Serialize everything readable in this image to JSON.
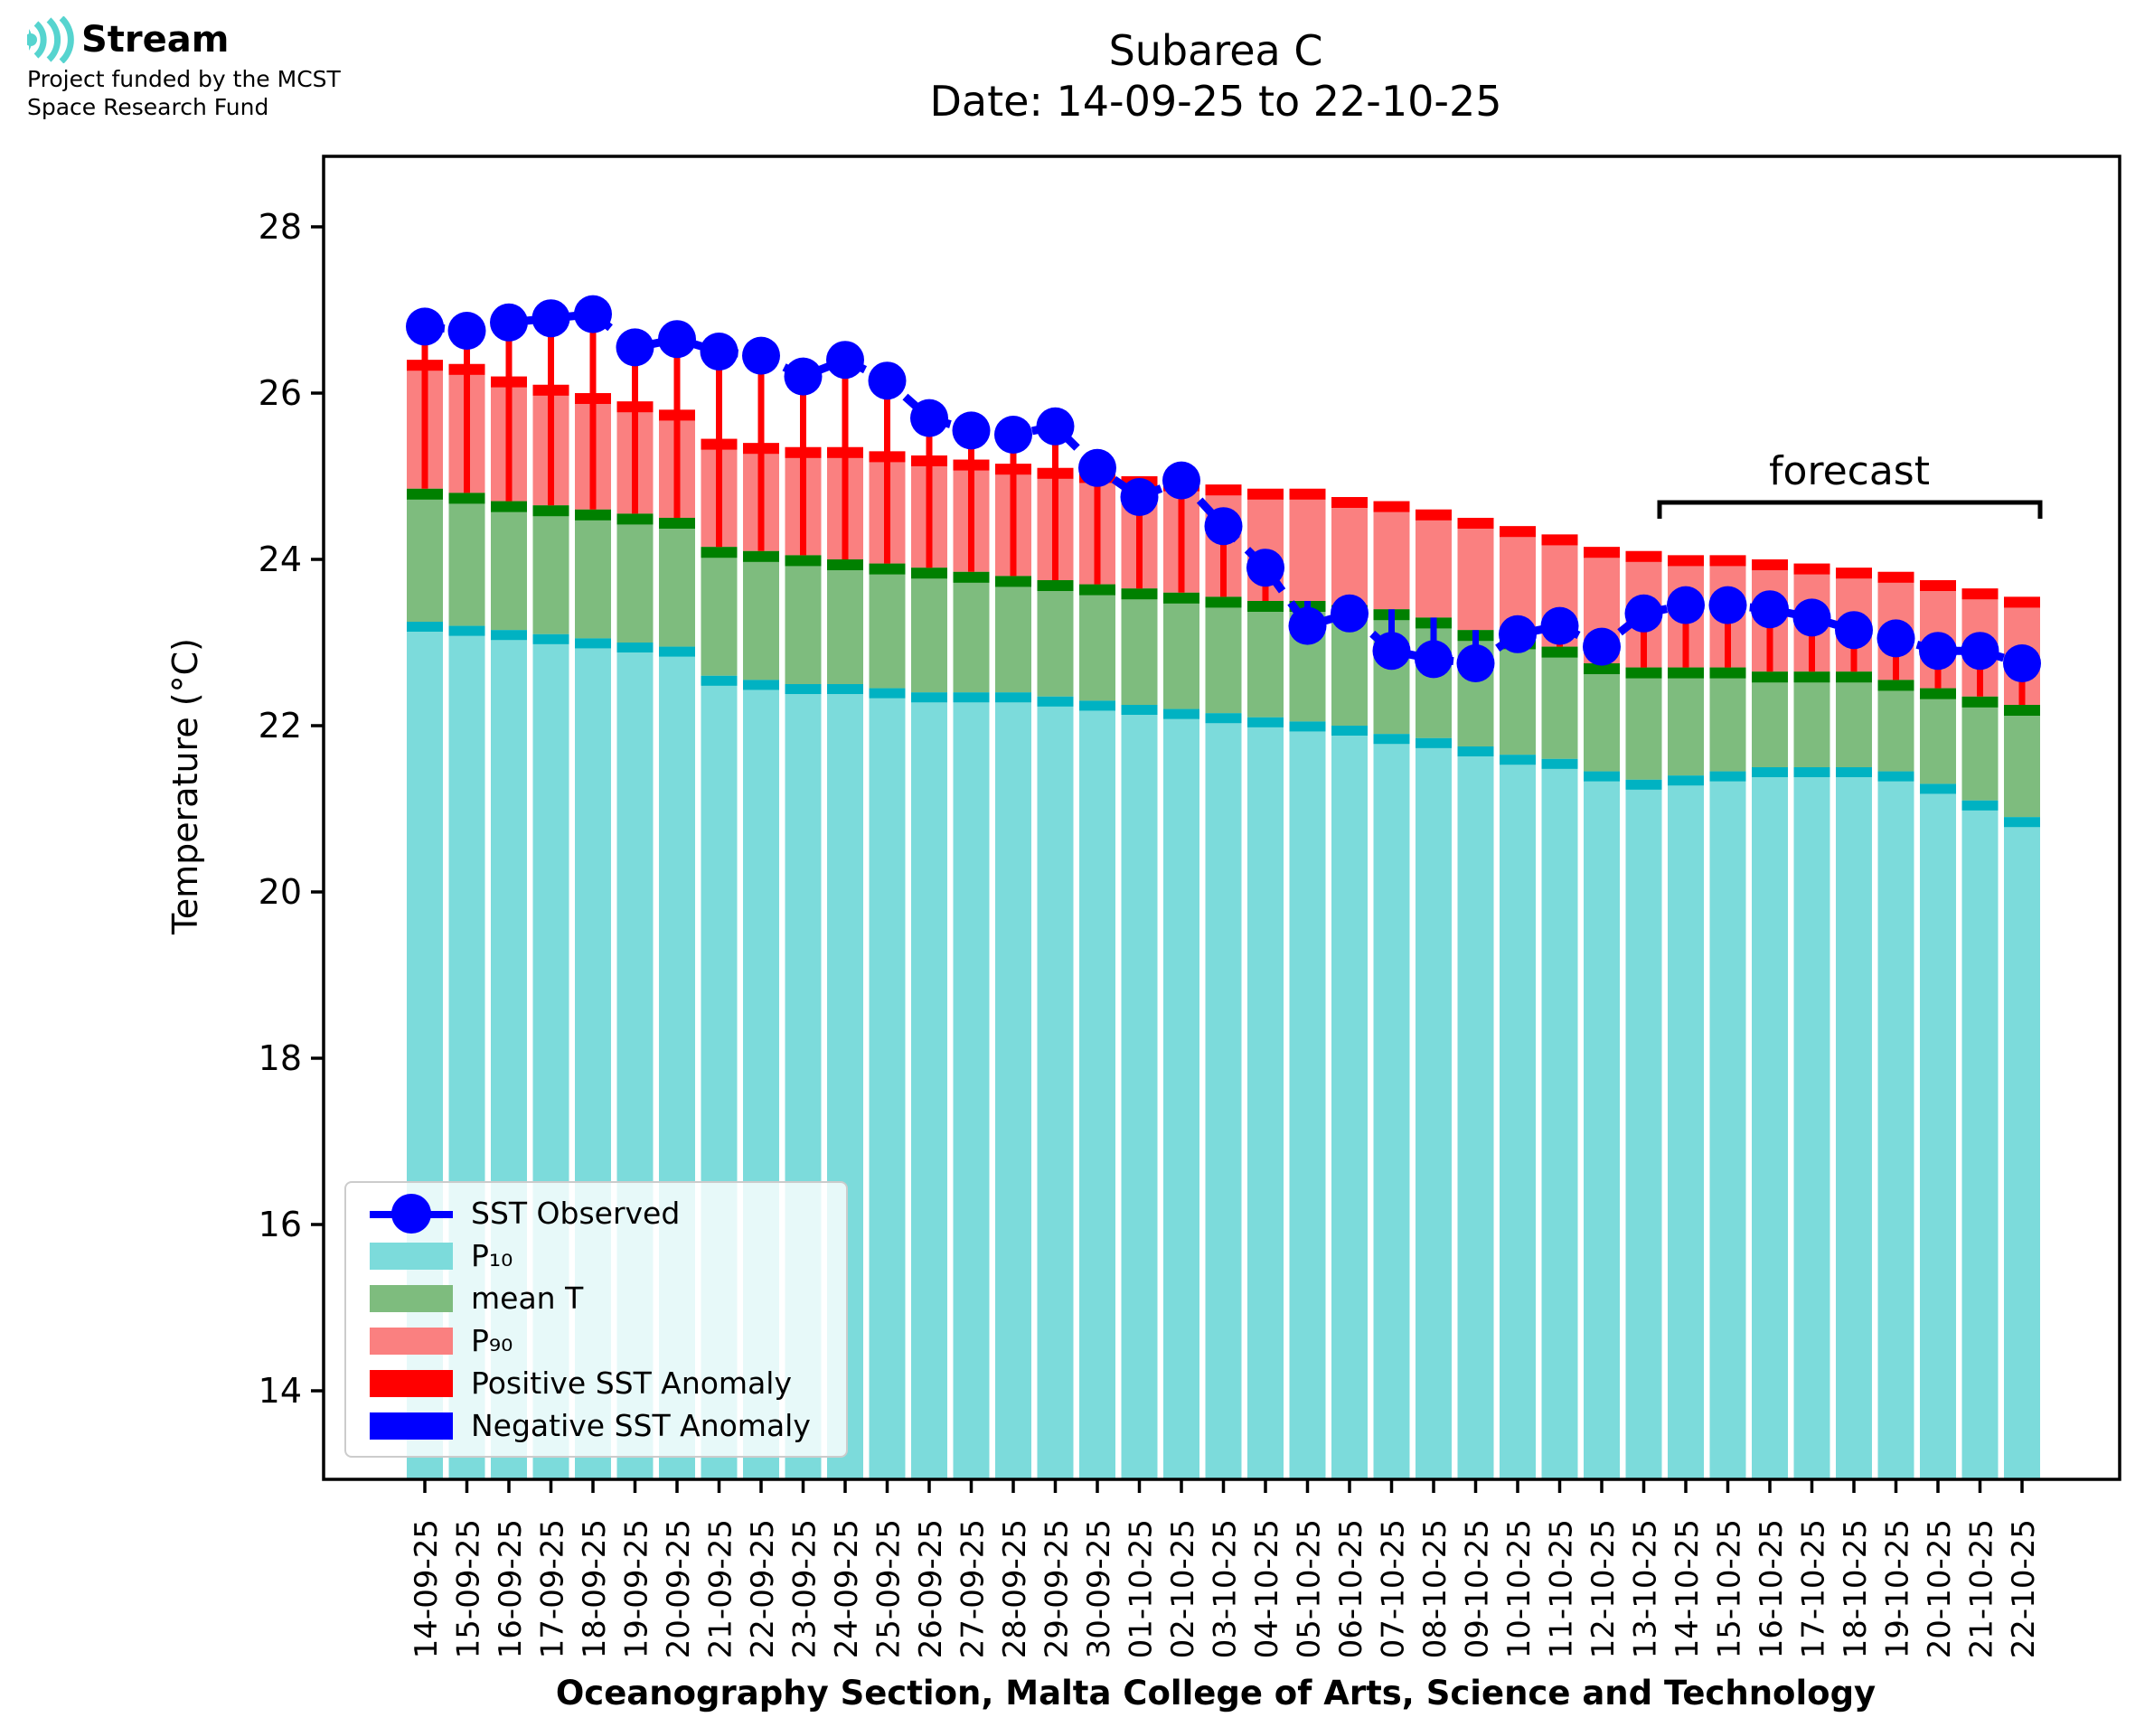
{
  "logo": {
    "brand": "Stream",
    "funding_line1": "Project funded by the MCST",
    "funding_line2": "Space Research Fund"
  },
  "title": {
    "line1": "Subarea C",
    "line2": "Date: 14-09-25 to 22-10-25"
  },
  "forecast_label": "forecast",
  "legend": {
    "entries": [
      {
        "label": "SST Observed",
        "kind": "line-marker",
        "color": "#0000ff"
      },
      {
        "label": "P₁₀",
        "kind": "patch",
        "color": "#7cdbdb"
      },
      {
        "label": "mean T",
        "kind": "patch",
        "color": "#7ebc7e"
      },
      {
        "label": "P₉₀",
        "kind": "patch",
        "color": "#fa8080"
      },
      {
        "label": "Positive SST Anomaly",
        "kind": "patch",
        "color": "#ff0000"
      },
      {
        "label": "Negative SST Anomaly",
        "kind": "patch",
        "color": "#0000ff"
      }
    ]
  },
  "chart_data": {
    "type": "bar",
    "title": "Subarea C",
    "subtitle": "Date: 14-09-25 to 22-10-25",
    "ylabel": "Temperature (°C)",
    "xlabel": "Oceanography Section, Malta College of Arts, Science and Technology",
    "ylim": [
      12.9,
      28.85
    ],
    "yticks": [
      28,
      26,
      24,
      22,
      20,
      18,
      16,
      14
    ],
    "grid": false,
    "legend_position": "lower left",
    "annotation": "forecast",
    "forecast_start_date": "14-10-25",
    "forecast_end_date": "22-10-25",
    "categories": [
      "14-09-25",
      "15-09-25",
      "16-09-25",
      "17-09-25",
      "18-09-25",
      "19-09-25",
      "20-09-25",
      "21-09-25",
      "22-09-25",
      "23-09-25",
      "24-09-25",
      "25-09-25",
      "26-09-25",
      "27-09-25",
      "28-09-25",
      "29-09-25",
      "30-09-25",
      "01-10-25",
      "02-10-25",
      "03-10-25",
      "04-10-25",
      "05-10-25",
      "06-10-25",
      "07-10-25",
      "08-10-25",
      "09-10-25",
      "10-10-25",
      "11-10-25",
      "12-10-25",
      "13-10-25",
      "14-10-25",
      "15-10-25",
      "16-10-25",
      "17-10-25",
      "18-10-25",
      "19-10-25",
      "20-10-25",
      "21-10-25",
      "22-10-25"
    ],
    "series": [
      {
        "name": "SST Observed",
        "type": "line-marker",
        "color": "#0000ff",
        "values": [
          26.8,
          26.75,
          26.85,
          26.9,
          26.95,
          26.55,
          26.65,
          26.5,
          26.45,
          26.2,
          26.4,
          26.15,
          25.7,
          25.55,
          25.5,
          25.6,
          25.1,
          24.75,
          24.95,
          24.4,
          23.9,
          23.2,
          23.35,
          22.9,
          22.8,
          22.75,
          23.1,
          23.2,
          22.95,
          23.35,
          23.45,
          23.45,
          23.4,
          23.3,
          23.15,
          23.05,
          22.9,
          22.9,
          22.75
        ]
      },
      {
        "name": "P₁₀",
        "type": "bar",
        "color": "#7cdbdb",
        "cap_color": "#00b2c2",
        "values": [
          23.25,
          23.2,
          23.15,
          23.1,
          23.05,
          23.0,
          22.95,
          22.6,
          22.55,
          22.5,
          22.5,
          22.45,
          22.4,
          22.4,
          22.4,
          22.35,
          22.3,
          22.25,
          22.2,
          22.15,
          22.1,
          22.05,
          22.0,
          21.9,
          21.85,
          21.75,
          21.65,
          21.6,
          21.45,
          21.35,
          21.4,
          21.45,
          21.5,
          21.5,
          21.5,
          21.45,
          21.3,
          21.1,
          20.9
        ]
      },
      {
        "name": "mean T",
        "type": "bar",
        "color": "#7ebc7e",
        "cap_color": "#008000",
        "values": [
          24.85,
          24.8,
          24.7,
          24.65,
          24.6,
          24.55,
          24.5,
          24.15,
          24.1,
          24.05,
          24.0,
          23.95,
          23.9,
          23.85,
          23.8,
          23.75,
          23.7,
          23.65,
          23.6,
          23.55,
          23.5,
          23.5,
          23.45,
          23.4,
          23.3,
          23.15,
          23.05,
          22.95,
          22.75,
          22.7,
          22.7,
          22.7,
          22.65,
          22.65,
          22.65,
          22.55,
          22.45,
          22.35,
          22.25
        ]
      },
      {
        "name": "P₉₀",
        "type": "bar",
        "color": "#fa8080",
        "cap_color": "#ff0000",
        "values": [
          26.4,
          26.35,
          26.2,
          26.1,
          26.0,
          25.9,
          25.8,
          25.45,
          25.4,
          25.35,
          25.35,
          25.3,
          25.25,
          25.2,
          25.15,
          25.1,
          25.05,
          25.0,
          24.95,
          24.9,
          24.85,
          24.85,
          24.75,
          24.7,
          24.6,
          24.5,
          24.4,
          24.3,
          24.15,
          24.1,
          24.05,
          24.05,
          24.0,
          23.95,
          23.9,
          23.85,
          23.75,
          23.65,
          23.55
        ]
      },
      {
        "name": "Positive SST Anomaly",
        "type": "stem",
        "color": "#ff0000"
      },
      {
        "name": "Negative SST Anomaly",
        "type": "stem",
        "color": "#0000ff"
      }
    ]
  }
}
